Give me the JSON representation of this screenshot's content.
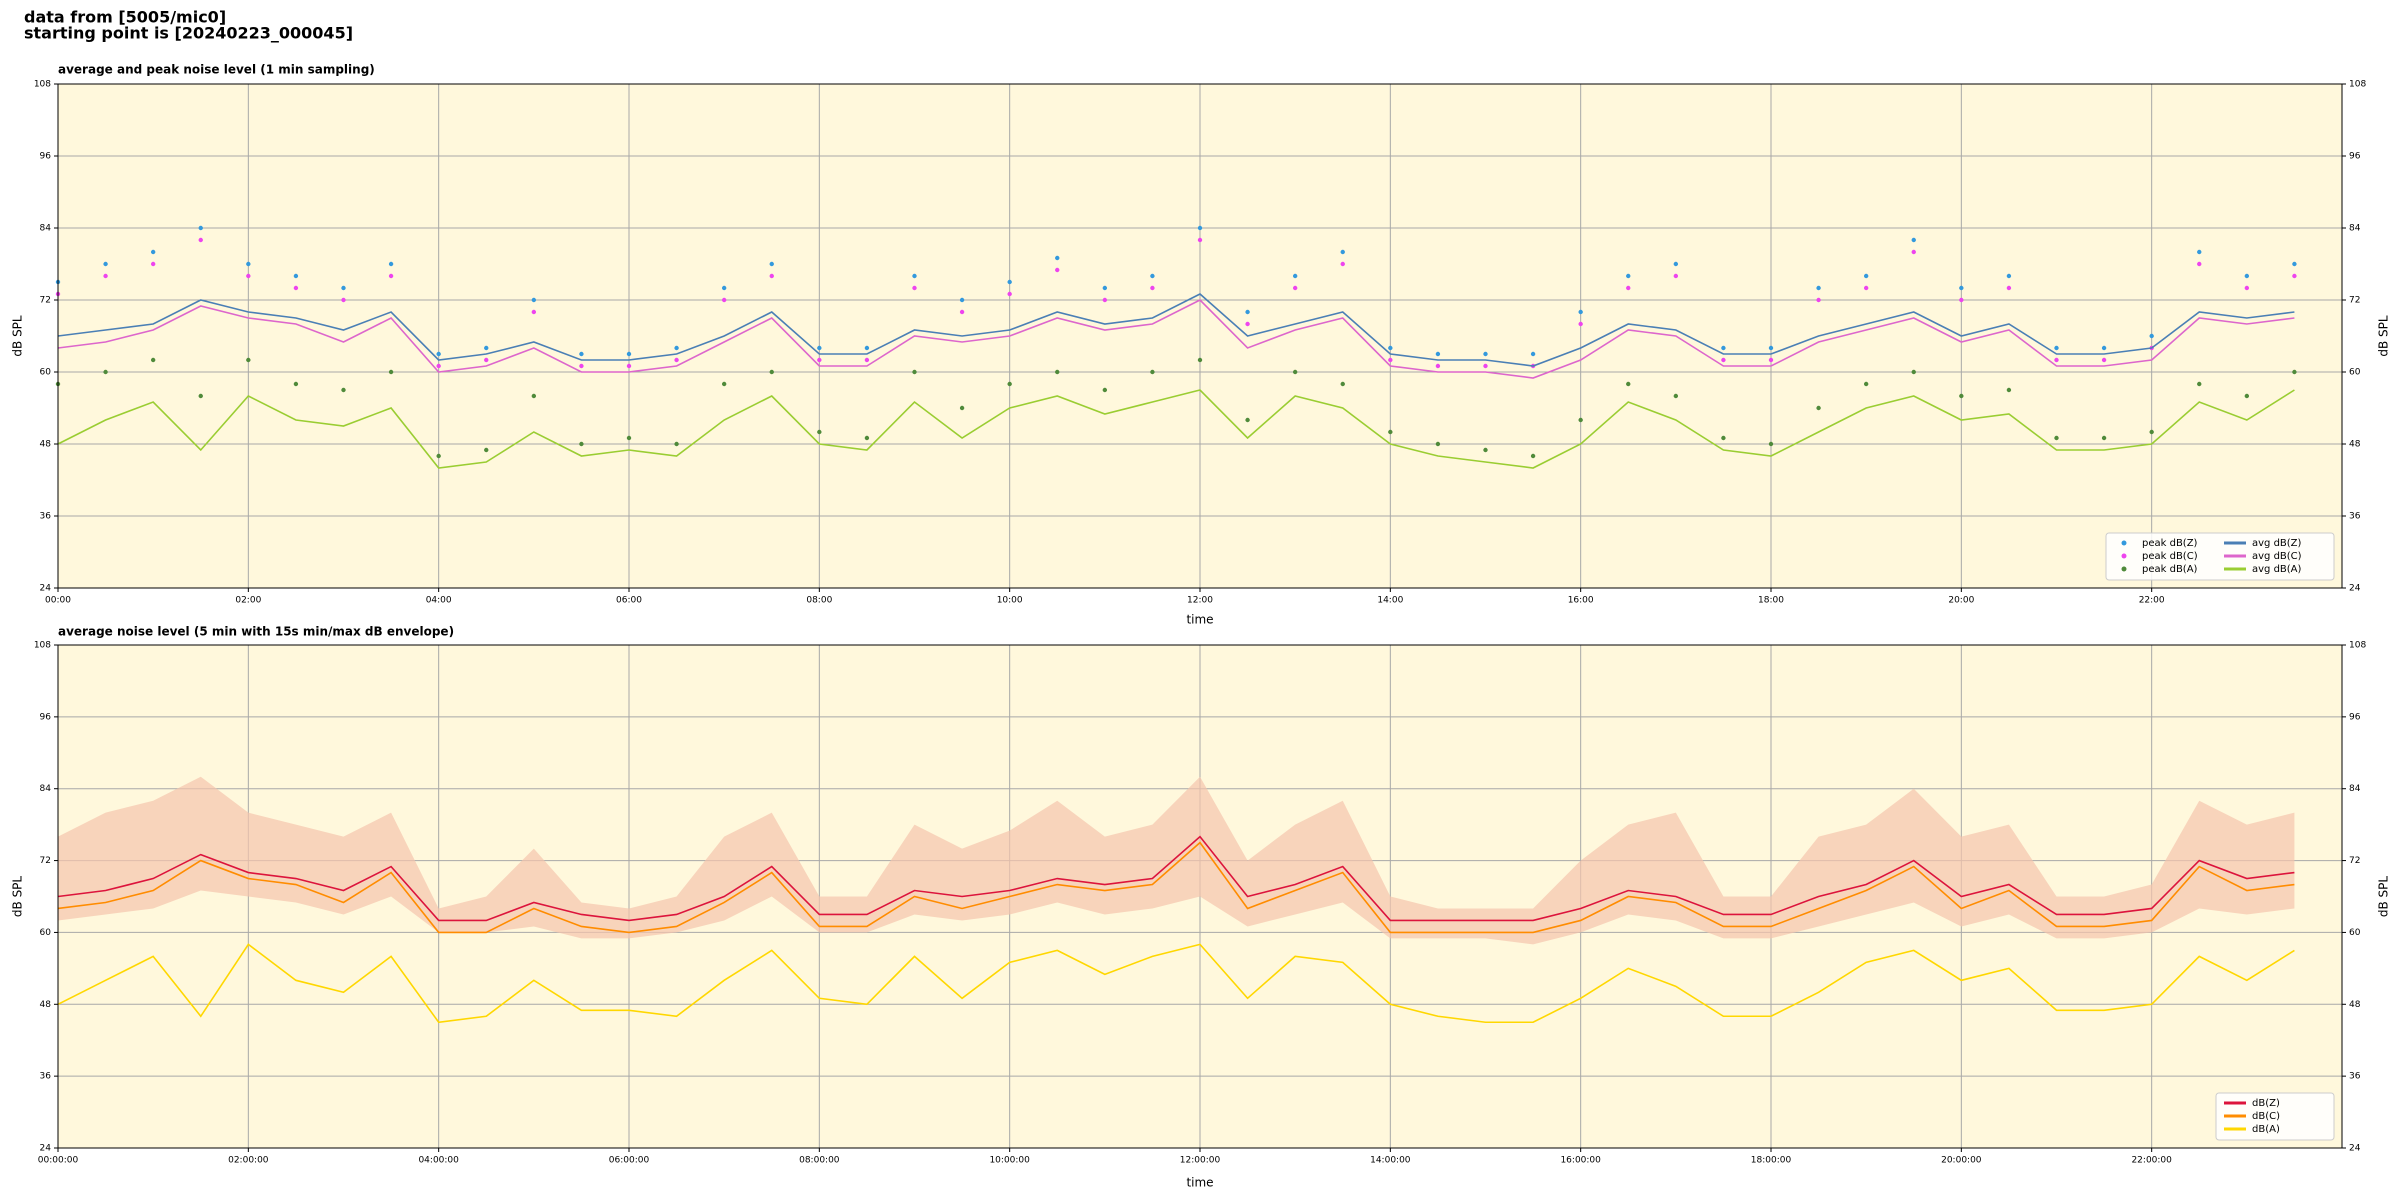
{
  "header": {
    "line1": "data from [5005/mic0]",
    "line2": "starting point is [20240223_000045]"
  },
  "chart_data": [
    {
      "type": "line",
      "title": "average and peak noise level (1 min sampling)",
      "xlabel": "time",
      "ylabel": "dB SPL",
      "xlim": [
        0,
        24
      ],
      "ylim": [
        24,
        108
      ],
      "xticks": [
        {
          "value": 0,
          "label": "00:00"
        },
        {
          "value": 2,
          "label": "02:00"
        },
        {
          "value": 4,
          "label": "04:00"
        },
        {
          "value": 6,
          "label": "06:00"
        },
        {
          "value": 8,
          "label": "08:00"
        },
        {
          "value": 10,
          "label": "10:00"
        },
        {
          "value": 12,
          "label": "12:00"
        },
        {
          "value": 14,
          "label": "14:00"
        },
        {
          "value": 16,
          "label": "16:00"
        },
        {
          "value": 18,
          "label": "18:00"
        },
        {
          "value": 20,
          "label": "20:00"
        },
        {
          "value": 22,
          "label": "22:00"
        }
      ],
      "yticks": [
        24,
        36,
        48,
        60,
        72,
        84,
        96,
        108
      ],
      "grid": true,
      "legend": "lower right",
      "legend_columns": 2,
      "background": "#fff8dc",
      "x": [
        0,
        0.5,
        1,
        1.5,
        2,
        2.5,
        3,
        3.5,
        4,
        4.5,
        5,
        5.5,
        6,
        6.5,
        7,
        7.5,
        8,
        8.5,
        9,
        9.5,
        10,
        10.5,
        11,
        11.5,
        12,
        12.5,
        13,
        13.5,
        14,
        14.5,
        15,
        15.5,
        16,
        16.5,
        17,
        17.5,
        18,
        18.5,
        19,
        19.5,
        20,
        20.5,
        21,
        21.5,
        22,
        22.5,
        23,
        23.5
      ],
      "series": [
        {
          "name": "peak dB(Z)",
          "color": "#3399dd",
          "style": "points",
          "values": [
            75,
            78,
            80,
            84,
            78,
            76,
            74,
            78,
            63,
            64,
            72,
            63,
            63,
            64,
            74,
            78,
            64,
            64,
            76,
            72,
            75,
            79,
            74,
            76,
            84,
            70,
            76,
            80,
            64,
            63,
            63,
            63,
            70,
            76,
            78,
            64,
            64,
            74,
            76,
            82,
            74,
            76,
            64,
            64,
            66,
            80,
            76,
            78
          ]
        },
        {
          "name": "peak dB(C)",
          "color": "#ee44ee",
          "style": "points",
          "values": [
            73,
            76,
            78,
            82,
            76,
            74,
            72,
            76,
            61,
            62,
            70,
            61,
            61,
            62,
            72,
            76,
            62,
            62,
            74,
            70,
            73,
            77,
            72,
            74,
            82,
            68,
            74,
            78,
            62,
            61,
            61,
            61,
            68,
            74,
            76,
            62,
            62,
            72,
            74,
            80,
            72,
            74,
            62,
            62,
            64,
            78,
            74,
            76
          ]
        },
        {
          "name": "peak dB(A)",
          "color": "#4f8a3a",
          "style": "points",
          "values": [
            58,
            60,
            62,
            56,
            62,
            58,
            57,
            60,
            46,
            47,
            56,
            48,
            49,
            48,
            58,
            60,
            50,
            49,
            60,
            54,
            58,
            60,
            57,
            60,
            62,
            52,
            60,
            58,
            50,
            48,
            47,
            46,
            52,
            58,
            56,
            49,
            48,
            54,
            58,
            60,
            56,
            57,
            49,
            49,
            50,
            58,
            56,
            60
          ]
        },
        {
          "name": "avg dB(Z)",
          "color": "#4a7fb5",
          "style": "line",
          "values": [
            66,
            67,
            68,
            72,
            70,
            69,
            67,
            70,
            62,
            63,
            65,
            62,
            62,
            63,
            66,
            70,
            63,
            63,
            67,
            66,
            67,
            70,
            68,
            69,
            73,
            66,
            68,
            70,
            63,
            62,
            62,
            61,
            64,
            68,
            67,
            63,
            63,
            66,
            68,
            70,
            66,
            68,
            63,
            63,
            64,
            70,
            69,
            70
          ]
        },
        {
          "name": "avg dB(C)",
          "color": "#dd66cc",
          "style": "line",
          "values": [
            64,
            65,
            67,
            71,
            69,
            68,
            65,
            69,
            60,
            61,
            64,
            60,
            60,
            61,
            65,
            69,
            61,
            61,
            66,
            65,
            66,
            69,
            67,
            68,
            72,
            64,
            67,
            69,
            61,
            60,
            60,
            59,
            62,
            67,
            66,
            61,
            61,
            65,
            67,
            69,
            65,
            67,
            61,
            61,
            62,
            69,
            68,
            69
          ]
        },
        {
          "name": "avg dB(A)",
          "color": "#9acd32",
          "style": "line",
          "values": [
            48,
            52,
            55,
            47,
            56,
            52,
            51,
            54,
            44,
            45,
            50,
            46,
            47,
            46,
            52,
            56,
            48,
            47,
            55,
            49,
            54,
            56,
            53,
            55,
            57,
            49,
            56,
            54,
            48,
            46,
            45,
            44,
            48,
            55,
            52,
            47,
            46,
            50,
            54,
            56,
            52,
            53,
            47,
            47,
            48,
            55,
            52,
            57
          ]
        }
      ]
    },
    {
      "type": "line",
      "title": "average noise level (5 min with 15s min/max dB envelope)",
      "xlabel": "time",
      "ylabel": "dB SPL",
      "xlim": [
        0,
        24
      ],
      "ylim": [
        24,
        108
      ],
      "xticks": [
        {
          "value": 0,
          "label": "00:00:00"
        },
        {
          "value": 2,
          "label": "02:00:00"
        },
        {
          "value": 4,
          "label": "04:00:00"
        },
        {
          "value": 6,
          "label": "06:00:00"
        },
        {
          "value": 8,
          "label": "08:00:00"
        },
        {
          "value": 10,
          "label": "10:00:00"
        },
        {
          "value": 12,
          "label": "12:00:00"
        },
        {
          "value": 14,
          "label": "14:00:00"
        },
        {
          "value": 16,
          "label": "16:00:00"
        },
        {
          "value": 18,
          "label": "18:00:00"
        },
        {
          "value": 20,
          "label": "20:00:00"
        },
        {
          "value": 22,
          "label": "22:00:00"
        }
      ],
      "yticks": [
        24,
        36,
        48,
        60,
        72,
        84,
        96,
        108
      ],
      "grid": true,
      "legend": "lower right",
      "legend_columns": 1,
      "background": "#fff8dc",
      "x": [
        0,
        0.5,
        1,
        1.5,
        2,
        2.5,
        3,
        3.5,
        4,
        4.5,
        5,
        5.5,
        6,
        6.5,
        7,
        7.5,
        8,
        8.5,
        9,
        9.5,
        10,
        10.5,
        11,
        11.5,
        12,
        12.5,
        13,
        13.5,
        14,
        14.5,
        15,
        15.5,
        16,
        16.5,
        17,
        17.5,
        18,
        18.5,
        19,
        19.5,
        20,
        20.5,
        21,
        21.5,
        22,
        22.5,
        23,
        23.5
      ],
      "envelope": {
        "color": "#f5c4ad",
        "upper": [
          76,
          80,
          82,
          86,
          80,
          78,
          76,
          80,
          64,
          66,
          74,
          65,
          64,
          66,
          76,
          80,
          66,
          66,
          78,
          74,
          77,
          82,
          76,
          78,
          86,
          72,
          78,
          82,
          66,
          64,
          64,
          64,
          72,
          78,
          80,
          66,
          66,
          76,
          78,
          84,
          76,
          78,
          66,
          66,
          68,
          82,
          78,
          80
        ],
        "lower": [
          62,
          63,
          64,
          67,
          66,
          65,
          63,
          66,
          60,
          60,
          61,
          59,
          59,
          60,
          62,
          66,
          60,
          60,
          63,
          62,
          63,
          65,
          63,
          64,
          66,
          61,
          63,
          65,
          59,
          59,
          59,
          58,
          60,
          63,
          62,
          59,
          59,
          61,
          63,
          65,
          61,
          63,
          59,
          59,
          60,
          64,
          63,
          64
        ]
      },
      "series": [
        {
          "name": "dB(Z)",
          "color": "#dc143c",
          "style": "line",
          "values": [
            66,
            67,
            69,
            73,
            70,
            69,
            67,
            71,
            62,
            62,
            65,
            63,
            62,
            63,
            66,
            71,
            63,
            63,
            67,
            66,
            67,
            69,
            68,
            69,
            76,
            66,
            68,
            71,
            62,
            62,
            62,
            62,
            64,
            67,
            66,
            63,
            63,
            66,
            68,
            72,
            66,
            68,
            63,
            63,
            64,
            72,
            69,
            70
          ]
        },
        {
          "name": "dB(C)",
          "color": "#ff8c00",
          "style": "line",
          "values": [
            64,
            65,
            67,
            72,
            69,
            68,
            65,
            70,
            60,
            60,
            64,
            61,
            60,
            61,
            65,
            70,
            61,
            61,
            66,
            64,
            66,
            68,
            67,
            68,
            75,
            64,
            67,
            70,
            60,
            60,
            60,
            60,
            62,
            66,
            65,
            61,
            61,
            64,
            67,
            71,
            64,
            67,
            61,
            61,
            62,
            71,
            67,
            68
          ]
        },
        {
          "name": "dB(A)",
          "color": "#ffd700",
          "style": "line",
          "values": [
            48,
            52,
            56,
            46,
            58,
            52,
            50,
            56,
            45,
            46,
            52,
            47,
            47,
            46,
            52,
            57,
            49,
            48,
            56,
            49,
            55,
            57,
            53,
            56,
            58,
            49,
            56,
            55,
            48,
            46,
            45,
            45,
            49,
            54,
            51,
            46,
            46,
            50,
            55,
            57,
            52,
            54,
            47,
            47,
            48,
            56,
            52,
            57
          ]
        }
      ]
    }
  ]
}
